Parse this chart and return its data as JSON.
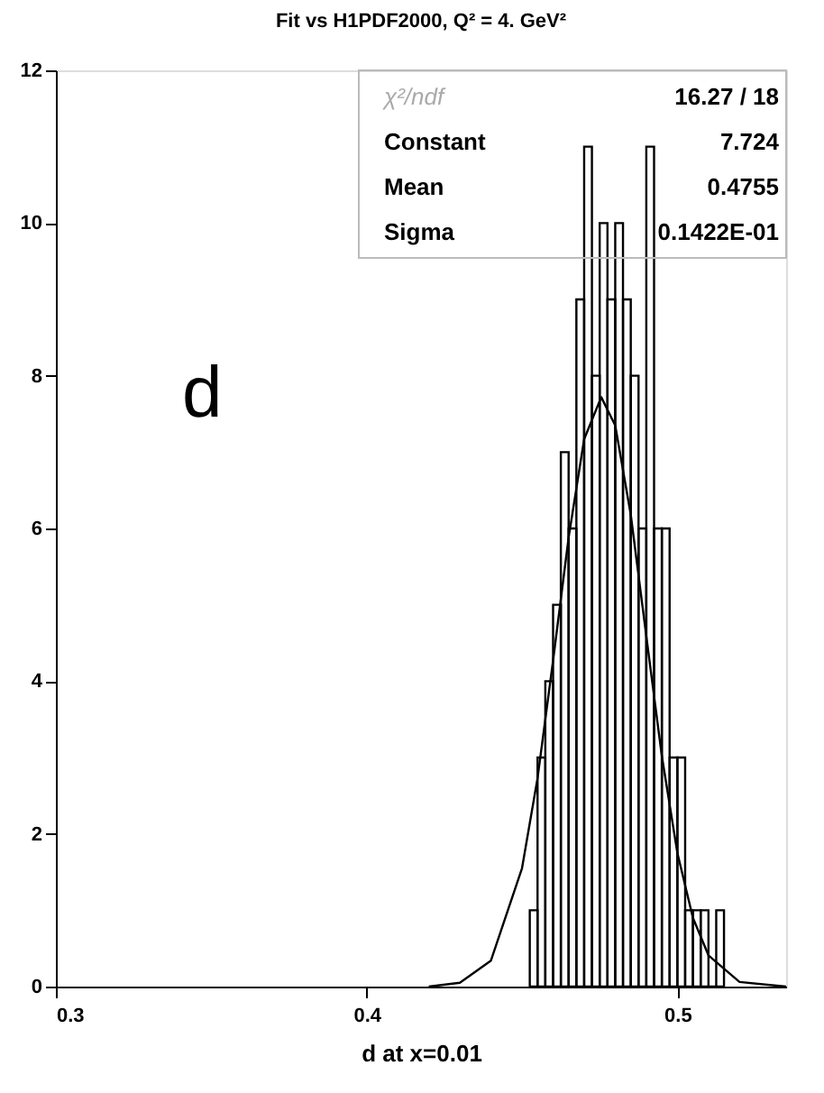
{
  "chart_data": {
    "type": "histogram",
    "title": "Fit vs H1PDF2000, Q² = 4. GeV²",
    "xlabel": "d at x=0.01",
    "bins": [
      0.4525,
      0.455,
      0.4575,
      0.46,
      0.4625,
      0.465,
      0.4675,
      0.47,
      0.4725,
      0.475,
      0.4775,
      0.48,
      0.4825,
      0.485,
      0.4875,
      0.49,
      0.4925,
      0.495,
      0.4975,
      0.5,
      0.5025,
      0.505,
      0.5075,
      0.51,
      0.5125,
      0.515
    ],
    "values": [
      1,
      3,
      4,
      5,
      7,
      6,
      9,
      11,
      8,
      10,
      9,
      10,
      9,
      8,
      6,
      11,
      6,
      6,
      3,
      3,
      1,
      1,
      1,
      0,
      1
    ],
    "color": "#000000",
    "series": [
      {
        "type": "line",
        "color": "#000000",
        "x": [
          0.42,
          0.43,
          0.44,
          0.45,
          0.455,
          0.46,
          0.465,
          0.47,
          0.4755,
          0.48,
          0.485,
          0.49,
          0.495,
          0.5,
          0.505,
          0.51,
          0.52,
          0.535
        ],
        "values": [
          0,
          0.05,
          0.34,
          1.55,
          2.73,
          4.27,
          5.88,
          7.17,
          7.72,
          7.35,
          6.18,
          4.59,
          3.02,
          1.75,
          0.9,
          0.41,
          0.06,
          0
        ]
      }
    ],
    "xlim": [
      0.3,
      0.535
    ],
    "xticks": [
      0.3,
      0.4,
      0.5
    ],
    "ylim": [
      0,
      12
    ],
    "yticks": [
      0,
      2,
      4,
      6,
      8,
      10,
      12
    ],
    "grid": false,
    "annotations": [
      "χ²/ndf",
      "16.27  /  18",
      "Constant",
      "7.724",
      "Mean",
      "0.4755",
      "Sigma",
      "0.1422E-01",
      "d"
    ]
  }
}
